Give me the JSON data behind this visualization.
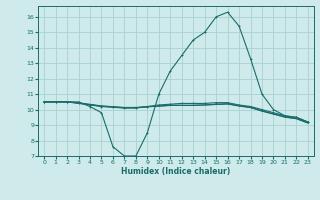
{
  "xlabel": "Humidex (Indice chaleur)",
  "bg_color": "#ceeaea",
  "grid_color": "#aad0d0",
  "line_color": "#1a6b6b",
  "xlim": [
    -0.5,
    23.5
  ],
  "ylim": [
    7,
    16.7
  ],
  "xticks": [
    0,
    1,
    2,
    3,
    4,
    5,
    6,
    7,
    8,
    9,
    10,
    11,
    12,
    13,
    14,
    15,
    16,
    17,
    18,
    19,
    20,
    21,
    22,
    23
  ],
  "yticks": [
    7,
    8,
    9,
    10,
    11,
    12,
    13,
    14,
    15,
    16
  ],
  "line1_x": [
    0,
    1,
    2,
    3,
    4,
    5,
    6,
    7,
    8,
    9,
    10,
    11,
    12,
    13,
    14,
    15,
    16,
    17,
    18,
    19,
    20,
    21,
    22,
    23
  ],
  "line1_y": [
    10.5,
    10.5,
    10.5,
    10.5,
    10.2,
    9.8,
    7.6,
    7.0,
    7.0,
    8.5,
    11.0,
    12.5,
    13.5,
    14.5,
    15.0,
    16.0,
    16.3,
    15.4,
    13.3,
    11.0,
    10.0,
    9.6,
    9.5,
    9.2
  ],
  "line2_x": [
    0,
    1,
    2,
    3,
    4,
    5,
    6,
    7,
    8,
    9,
    10,
    11,
    12,
    13,
    14,
    15,
    16,
    17,
    18,
    19,
    20,
    21,
    22,
    23
  ],
  "line2_y": [
    10.5,
    10.5,
    10.5,
    10.4,
    10.3,
    10.2,
    10.15,
    10.1,
    10.1,
    10.2,
    10.3,
    10.35,
    10.4,
    10.4,
    10.4,
    10.45,
    10.45,
    10.3,
    10.2,
    10.0,
    9.8,
    9.6,
    9.5,
    9.2
  ],
  "line3_x": [
    0,
    1,
    2,
    3,
    4,
    5,
    6,
    7,
    8,
    9,
    10,
    11,
    12,
    13,
    14,
    15,
    16,
    17,
    18,
    19,
    20,
    21,
    22,
    23
  ],
  "line3_y": [
    10.5,
    10.5,
    10.5,
    10.42,
    10.32,
    10.22,
    10.17,
    10.12,
    10.12,
    10.18,
    10.22,
    10.27,
    10.27,
    10.27,
    10.3,
    10.35,
    10.38,
    10.25,
    10.15,
    9.92,
    9.73,
    9.53,
    9.43,
    9.15
  ],
  "line4_x": [
    0,
    1,
    2,
    3,
    4,
    5,
    6,
    7,
    8,
    9,
    10,
    11,
    12,
    13,
    14,
    15,
    16,
    17,
    18,
    19,
    20,
    21,
    22,
    23
  ],
  "line4_y": [
    10.5,
    10.5,
    10.5,
    10.44,
    10.34,
    10.24,
    10.19,
    10.14,
    10.14,
    10.19,
    10.23,
    10.28,
    10.28,
    10.28,
    10.3,
    10.33,
    10.36,
    10.23,
    10.13,
    9.9,
    9.71,
    9.51,
    9.41,
    9.13
  ]
}
